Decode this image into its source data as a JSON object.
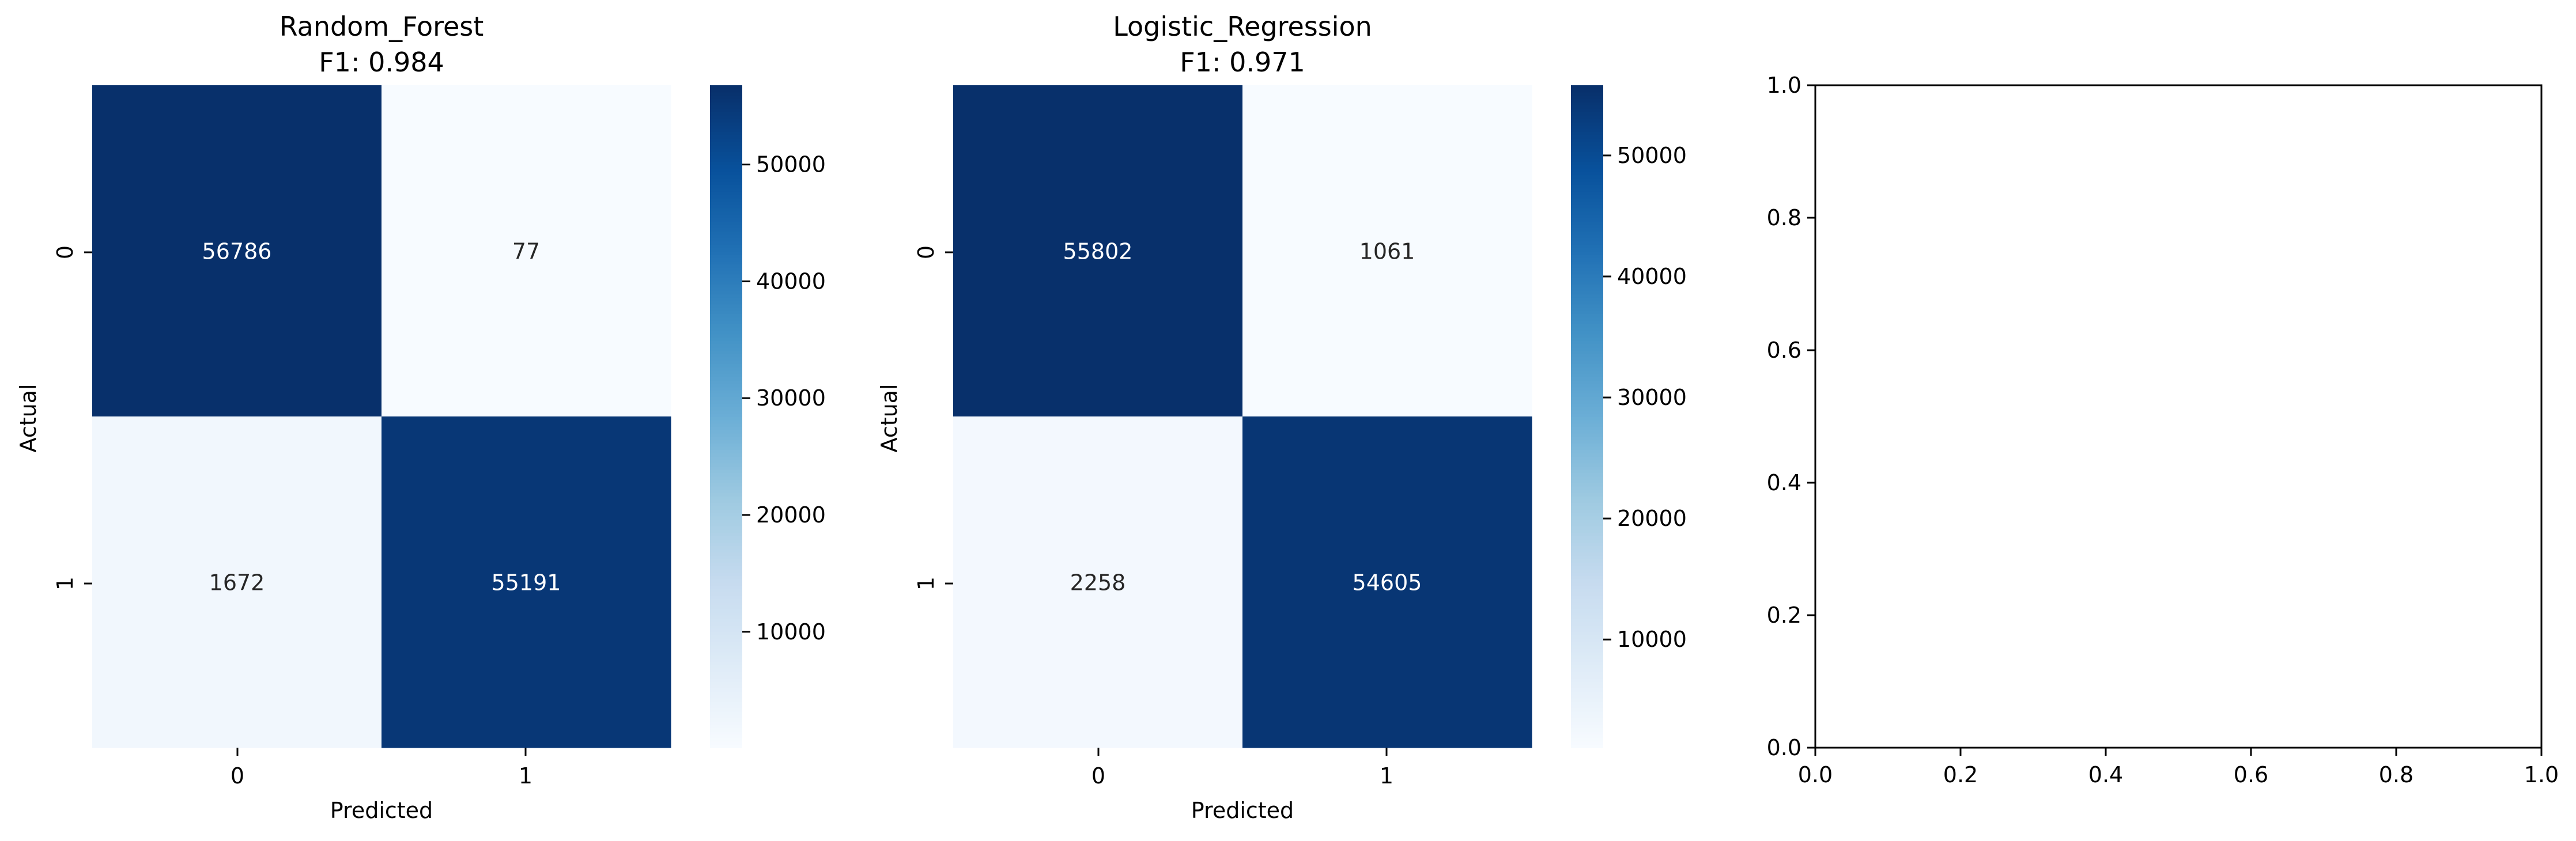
{
  "chart_data": [
    {
      "type": "heatmap",
      "title_line1": "Random_Forest",
      "title_line2": "F1: 0.984",
      "xlabel": "Predicted",
      "ylabel": "Actual",
      "x_categories": [
        "0",
        "1"
      ],
      "y_categories": [
        "0",
        "1"
      ],
      "values": [
        [
          56786,
          77
        ],
        [
          1672,
          55191
        ]
      ],
      "colormap": "Blues",
      "colorbar": {
        "range": [
          77,
          56786
        ],
        "ticks": [
          10000,
          20000,
          30000,
          40000,
          50000
        ],
        "tick_labels": [
          "10000",
          "20000",
          "30000",
          "40000",
          "50000"
        ]
      }
    },
    {
      "type": "heatmap",
      "title_line1": "Logistic_Regression",
      "title_line2": "F1: 0.971",
      "xlabel": "Predicted",
      "ylabel": "Actual",
      "x_categories": [
        "0",
        "1"
      ],
      "y_categories": [
        "0",
        "1"
      ],
      "values": [
        [
          55802,
          1061
        ],
        [
          2258,
          54605
        ]
      ],
      "colormap": "Blues",
      "colorbar": {
        "range": [
          1061,
          55802
        ],
        "ticks": [
          10000,
          20000,
          30000,
          40000,
          50000
        ],
        "tick_labels": [
          "10000",
          "20000",
          "30000",
          "40000",
          "50000"
        ]
      }
    },
    {
      "type": "scatter",
      "title": "",
      "xlabel": "",
      "ylabel": "",
      "xlim": [
        0.0,
        1.0
      ],
      "ylim": [
        0.0,
        1.0
      ],
      "x_ticks": [
        0.0,
        0.2,
        0.4,
        0.6,
        0.8,
        1.0
      ],
      "x_tick_labels": [
        "0.0",
        "0.2",
        "0.4",
        "0.6",
        "0.8",
        "1.0"
      ],
      "y_ticks": [
        0.0,
        0.2,
        0.4,
        0.6,
        0.8,
        1.0
      ],
      "y_tick_labels": [
        "0.0",
        "0.2",
        "0.4",
        "0.6",
        "0.8",
        "1.0"
      ],
      "series": []
    }
  ]
}
